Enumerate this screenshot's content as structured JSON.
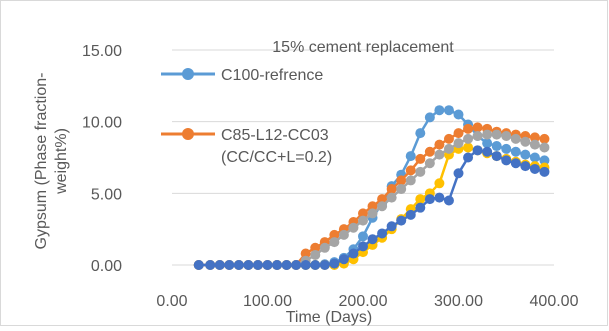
{
  "chart_data": {
    "type": "line",
    "title": "15% cement replacement",
    "xlabel": "Time (Days)",
    "ylabel": "Gypsum (Phase fraction- weight%)",
    "ylabel_lines": [
      "Gypsum (Phase fraction-",
      "weight%)"
    ],
    "xlim": [
      0,
      400
    ],
    "ylim": [
      0,
      15
    ],
    "x_ticks": [
      "0.00",
      "100.00",
      "200.00",
      "300.00",
      "400.00"
    ],
    "y_ticks": [
      "0.00",
      "5.00",
      "10.00",
      "15.00"
    ],
    "x_tick_values": [
      0,
      100,
      200,
      300,
      400
    ],
    "y_tick_values": [
      0,
      5,
      10,
      15
    ],
    "grid": "horizontal",
    "legend_position": "top-left",
    "legend_entries": [
      {
        "series": 0,
        "lines": [
          "C100-refrence"
        ]
      },
      {
        "series": 2,
        "lines": [
          "C85-L12-CC03",
          "(CC/CC+L=0.2)"
        ]
      }
    ],
    "series": [
      {
        "name": "C100-refrence",
        "color": "#5b9bd5",
        "x": [
          28,
          40,
          50,
          60,
          70,
          80,
          90,
          100,
          110,
          120,
          130,
          140,
          150,
          160,
          170,
          180,
          190,
          200,
          210,
          220,
          230,
          240,
          250,
          260,
          270,
          280,
          290,
          300,
          310,
          320,
          330,
          340,
          350,
          360,
          370,
          380,
          390
        ],
        "y": [
          0,
          0,
          0,
          0,
          0,
          0,
          0,
          0,
          0,
          0,
          0,
          0,
          0,
          0.05,
          0.2,
          0.5,
          1.1,
          2.0,
          3.3,
          4.3,
          5.5,
          6.3,
          7.6,
          9.2,
          10.3,
          10.8,
          10.8,
          10.5,
          9.8,
          9.0,
          8.5,
          8.3,
          8.1,
          7.9,
          7.7,
          7.5,
          7.3
        ]
      },
      {
        "name": "",
        "color": "#ffc000",
        "x": [
          28,
          40,
          50,
          60,
          70,
          80,
          90,
          100,
          110,
          120,
          130,
          140,
          150,
          160,
          170,
          180,
          190,
          200,
          210,
          220,
          230,
          240,
          250,
          260,
          270,
          280,
          290,
          300,
          310,
          320,
          330,
          340,
          350,
          360,
          370,
          380,
          390
        ],
        "y": [
          0,
          0,
          0,
          0,
          0,
          0,
          0,
          0,
          0,
          0,
          0,
          0,
          0,
          0,
          0,
          0.1,
          0.4,
          0.9,
          1.4,
          1.9,
          2.5,
          3.2,
          3.9,
          4.6,
          5.0,
          5.7,
          7.7,
          8.1,
          8.2,
          8.0,
          7.8,
          7.6,
          7.4,
          7.2,
          7.0,
          6.9,
          6.8
        ]
      },
      {
        "name": "C85-L12-CC03 (CC/CC+L=0.2)",
        "color": "#ed7d31",
        "x": [
          28,
          40,
          50,
          60,
          70,
          80,
          90,
          100,
          110,
          120,
          130,
          140,
          150,
          160,
          170,
          180,
          190,
          200,
          210,
          220,
          230,
          240,
          250,
          260,
          270,
          280,
          290,
          300,
          310,
          320,
          330,
          340,
          350,
          360,
          370,
          380,
          390
        ],
        "y": [
          0,
          0,
          0,
          0,
          0,
          0,
          0,
          0,
          0,
          0,
          0,
          0.8,
          1.2,
          1.6,
          2.1,
          2.5,
          3.0,
          3.6,
          4.1,
          4.6,
          5.3,
          5.9,
          6.6,
          7.4,
          7.9,
          8.4,
          8.8,
          9.2,
          9.5,
          9.6,
          9.5,
          9.3,
          9.2,
          9.1,
          9.0,
          8.9,
          8.8
        ]
      },
      {
        "name": "",
        "color": "#a5a5a5",
        "x": [
          28,
          40,
          50,
          60,
          70,
          80,
          90,
          100,
          110,
          120,
          130,
          140,
          150,
          160,
          170,
          180,
          190,
          200,
          210,
          220,
          230,
          240,
          250,
          260,
          270,
          280,
          290,
          300,
          310,
          320,
          330,
          340,
          350,
          360,
          370,
          380,
          390
        ],
        "y": [
          0,
          0,
          0,
          0,
          0,
          0,
          0,
          0,
          0,
          0,
          0,
          0.3,
          0.7,
          1.2,
          1.6,
          2.1,
          2.6,
          3.1,
          3.6,
          4.1,
          4.7,
          5.3,
          5.9,
          6.5,
          7.1,
          7.7,
          8.1,
          8.5,
          8.8,
          9.0,
          9.1,
          9.1,
          9.0,
          8.8,
          8.6,
          8.4,
          8.2
        ]
      },
      {
        "name": "",
        "color": "#4472c4",
        "x": [
          28,
          40,
          50,
          60,
          70,
          80,
          90,
          100,
          110,
          120,
          130,
          140,
          150,
          160,
          170,
          180,
          190,
          200,
          210,
          220,
          230,
          240,
          250,
          260,
          270,
          280,
          290,
          300,
          310,
          320,
          330,
          340,
          350,
          360,
          370,
          380,
          390
        ],
        "y": [
          0,
          0,
          0,
          0,
          0,
          0,
          0,
          0,
          0,
          0,
          0,
          0,
          0,
          0,
          0.1,
          0.4,
          0.8,
          1.3,
          1.8,
          2.2,
          2.7,
          3.1,
          3.5,
          4.0,
          4.6,
          4.7,
          4.5,
          6.4,
          7.5,
          8.0,
          7.9,
          7.6,
          7.3,
          7.1,
          6.9,
          6.7,
          6.5
        ]
      }
    ]
  }
}
